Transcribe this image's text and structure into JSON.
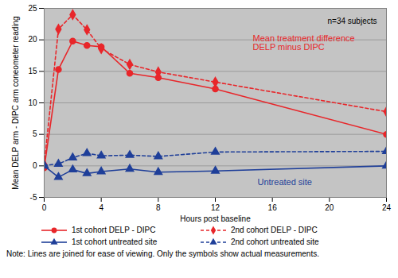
{
  "chart_data": {
    "type": "line",
    "x_label": "Hours post baseline",
    "y_label": "Mean DELP arm - DIPC arm coneometer reading",
    "x": [
      0,
      1,
      2,
      3,
      4,
      6,
      8,
      12,
      24
    ],
    "series": [
      {
        "name": "1st cohort DELP - DIPC",
        "color": "#e8262a",
        "line_style": "solid",
        "marker": "circle",
        "values": [
          -0.3,
          15.3,
          19.8,
          19.1,
          18.9,
          14.7,
          14.0,
          12.2,
          5.0
        ]
      },
      {
        "name": "2nd cohort DELP - DIPC",
        "color": "#e8262a",
        "line_style": "dashed",
        "marker": "diamond",
        "values": [
          0.2,
          21.7,
          24.0,
          21.6,
          18.6,
          16.1,
          14.9,
          13.3,
          8.6
        ]
      },
      {
        "name": "1st cohort untreated site",
        "color": "#1f3f99",
        "line_style": "solid",
        "marker": "triangle",
        "values": [
          0.0,
          -1.8,
          -0.6,
          -1.2,
          -0.9,
          -0.5,
          -1.0,
          -0.8,
          0.0
        ]
      },
      {
        "name": "2nd cohort untreated site",
        "color": "#1f3f99",
        "line_style": "dashed",
        "marker": "triangle",
        "values": [
          0.1,
          0.3,
          1.3,
          2.0,
          1.6,
          1.7,
          1.5,
          2.2,
          2.3
        ]
      }
    ],
    "xlim": [
      0,
      24
    ],
    "xticks": [
      0,
      4,
      8,
      12,
      16,
      20,
      24
    ],
    "ylim": [
      -5,
      25
    ],
    "yticks": [
      -5,
      0,
      5,
      10,
      15,
      20,
      25
    ],
    "grid": true,
    "legend": "bottom",
    "annotations": [
      "n=34 subjects",
      "Mean treatment difference\nDELP minus DIPC",
      "Untreated site"
    ],
    "caption": "Note: Lines are joined for ease of viewing. Only the symbols show actual measurements."
  }
}
